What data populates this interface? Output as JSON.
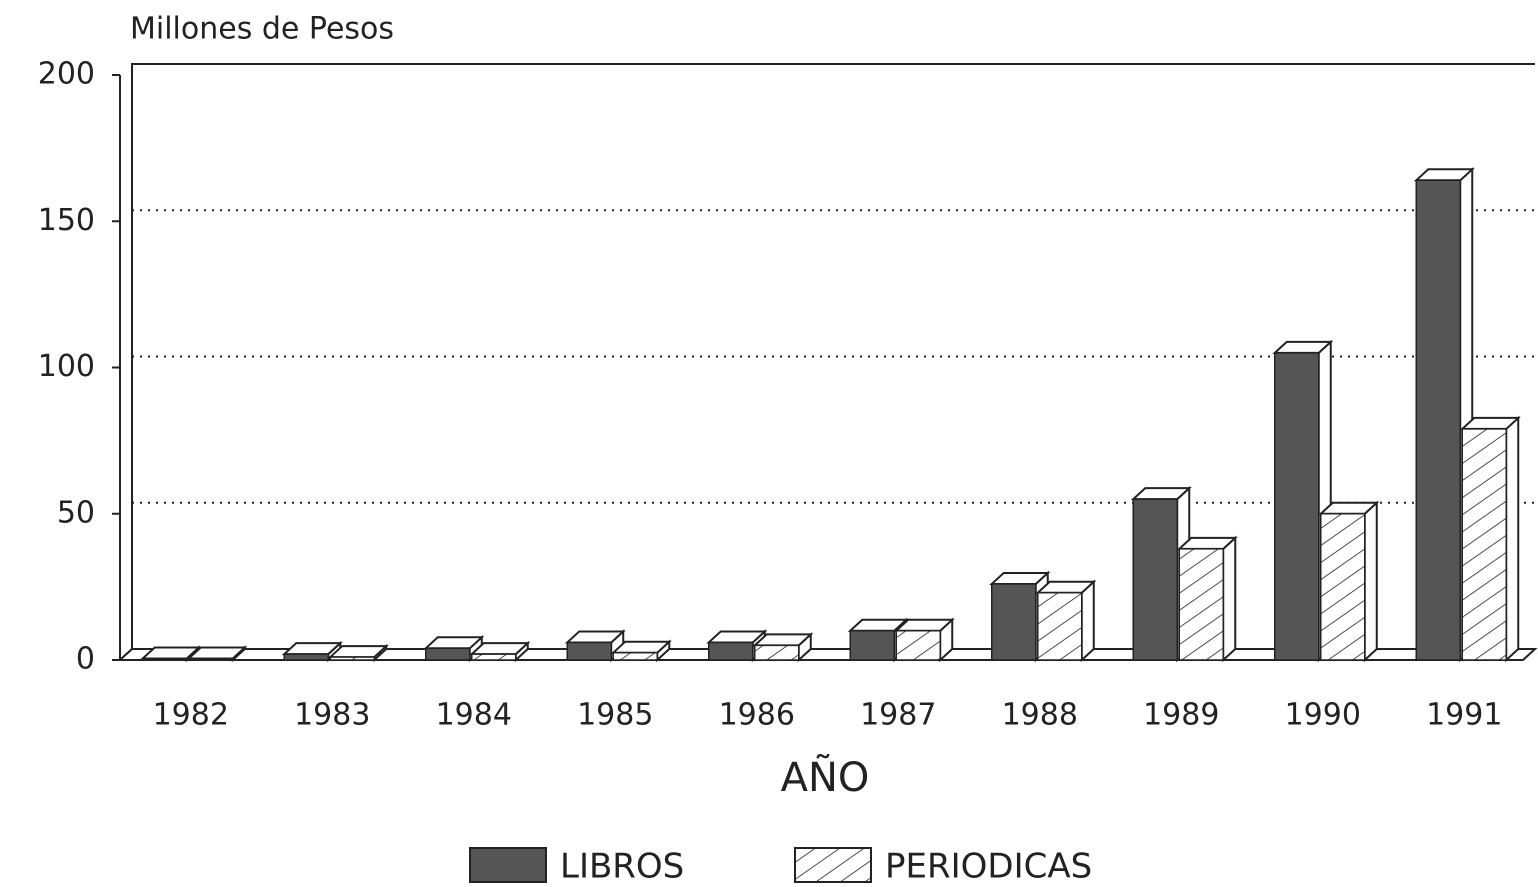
{
  "chart_data": {
    "type": "bar3d",
    "y_label": "Millones de Pesos",
    "x_label": "AÑO",
    "categories": [
      "1982",
      "1983",
      "1984",
      "1985",
      "1986",
      "1987",
      "1988",
      "1989",
      "1990",
      "1991"
    ],
    "series": [
      {
        "name": "LIBROS",
        "color": "#555555",
        "values": [
          0.5,
          2,
          4,
          6,
          6,
          10,
          26,
          55,
          105,
          164
        ]
      },
      {
        "name": "PERIODICAS",
        "color": "#ffffff",
        "pattern": "hatch",
        "values": [
          0.5,
          1,
          2,
          2.5,
          5,
          10,
          23,
          38,
          50,
          79
        ]
      }
    ],
    "ylim": [
      0,
      200
    ],
    "yticks": [
      0,
      50,
      100,
      150,
      200
    ],
    "grid": true
  }
}
